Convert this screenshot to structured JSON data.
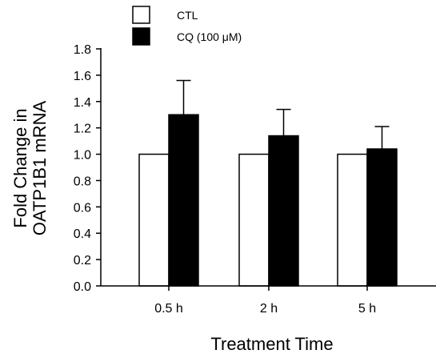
{
  "chart_data": {
    "type": "bar",
    "categories": [
      "0.5 h",
      "2 h",
      "5 h"
    ],
    "series": [
      {
        "name": "CTL",
        "values": [
          1.0,
          1.0,
          1.0
        ],
        "errors": [
          0,
          0,
          0
        ],
        "fill": "#ffffff"
      },
      {
        "name": "CQ (100 μM)",
        "values": [
          1.3,
          1.14,
          1.04
        ],
        "errors": [
          0.26,
          0.2,
          0.17
        ],
        "fill": "#000000"
      }
    ],
    "xlabel": "Treatment Time",
    "ylabel_lines": [
      "Fold Change in",
      "OATP1B1 mRNA"
    ],
    "ylim": [
      0,
      1.8
    ],
    "yticks": [
      "0.0",
      "0.2",
      "0.4",
      "0.6",
      "0.8",
      "1.0",
      "1.2",
      "1.4",
      "1.6",
      "1.8"
    ],
    "grid": false,
    "legend_position": "top"
  }
}
